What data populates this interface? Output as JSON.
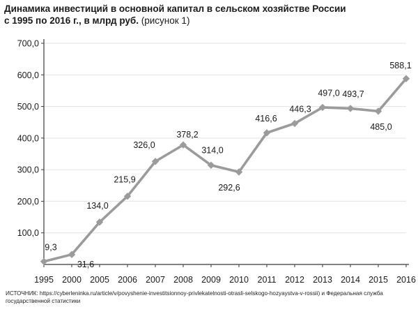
{
  "title": {
    "line1": "Динамика инвестиций в основной капитал в сельском хозяйстве России",
    "line2_bold": "с 1995 по 2016 г., в млрд руб.",
    "line2_normal": " (рисунок 1)"
  },
  "source_text": "ИСТОЧНИК: https://cyberleninka.ru/article/v/povyshenie-investitsionnoy-privlekatelnosti-otrasli-selskogo-hozyaystva-v-rossii) и Федеральная служба государственной статистики",
  "chart_data": {
    "type": "line",
    "categories": [
      "1995",
      "2000",
      "2005",
      "2006",
      "2007",
      "2008",
      "2009",
      "2010",
      "2011",
      "2012",
      "2013",
      "2014",
      "2015",
      "2016"
    ],
    "series": [
      {
        "values": [
          9.3,
          31.6,
          134.0,
          215.9,
          326.0,
          378.2,
          314.0,
          292.6,
          416.6,
          446.3,
          497.0,
          493.7,
          485.0,
          588.1
        ],
        "labels": [
          "9,3",
          "31,6",
          "134,0",
          "215,9",
          "326,0",
          "378,2",
          "314,0",
          "292,6",
          "416,6",
          "446,3",
          "497,0",
          "493,7",
          "485,0",
          "588,1"
        ]
      }
    ],
    "ylim": [
      0,
      700
    ],
    "yticks": [
      100,
      200,
      300,
      400,
      500,
      600,
      700
    ],
    "ytick_labels": [
      "100,0",
      "200,0",
      "300,0",
      "400,0",
      "500,0",
      "600,0",
      "700,0"
    ],
    "grid": true,
    "colors": {
      "line": "#9b9b9b",
      "grid": "#e3e3e3",
      "axis": "#3a3a3a"
    }
  }
}
